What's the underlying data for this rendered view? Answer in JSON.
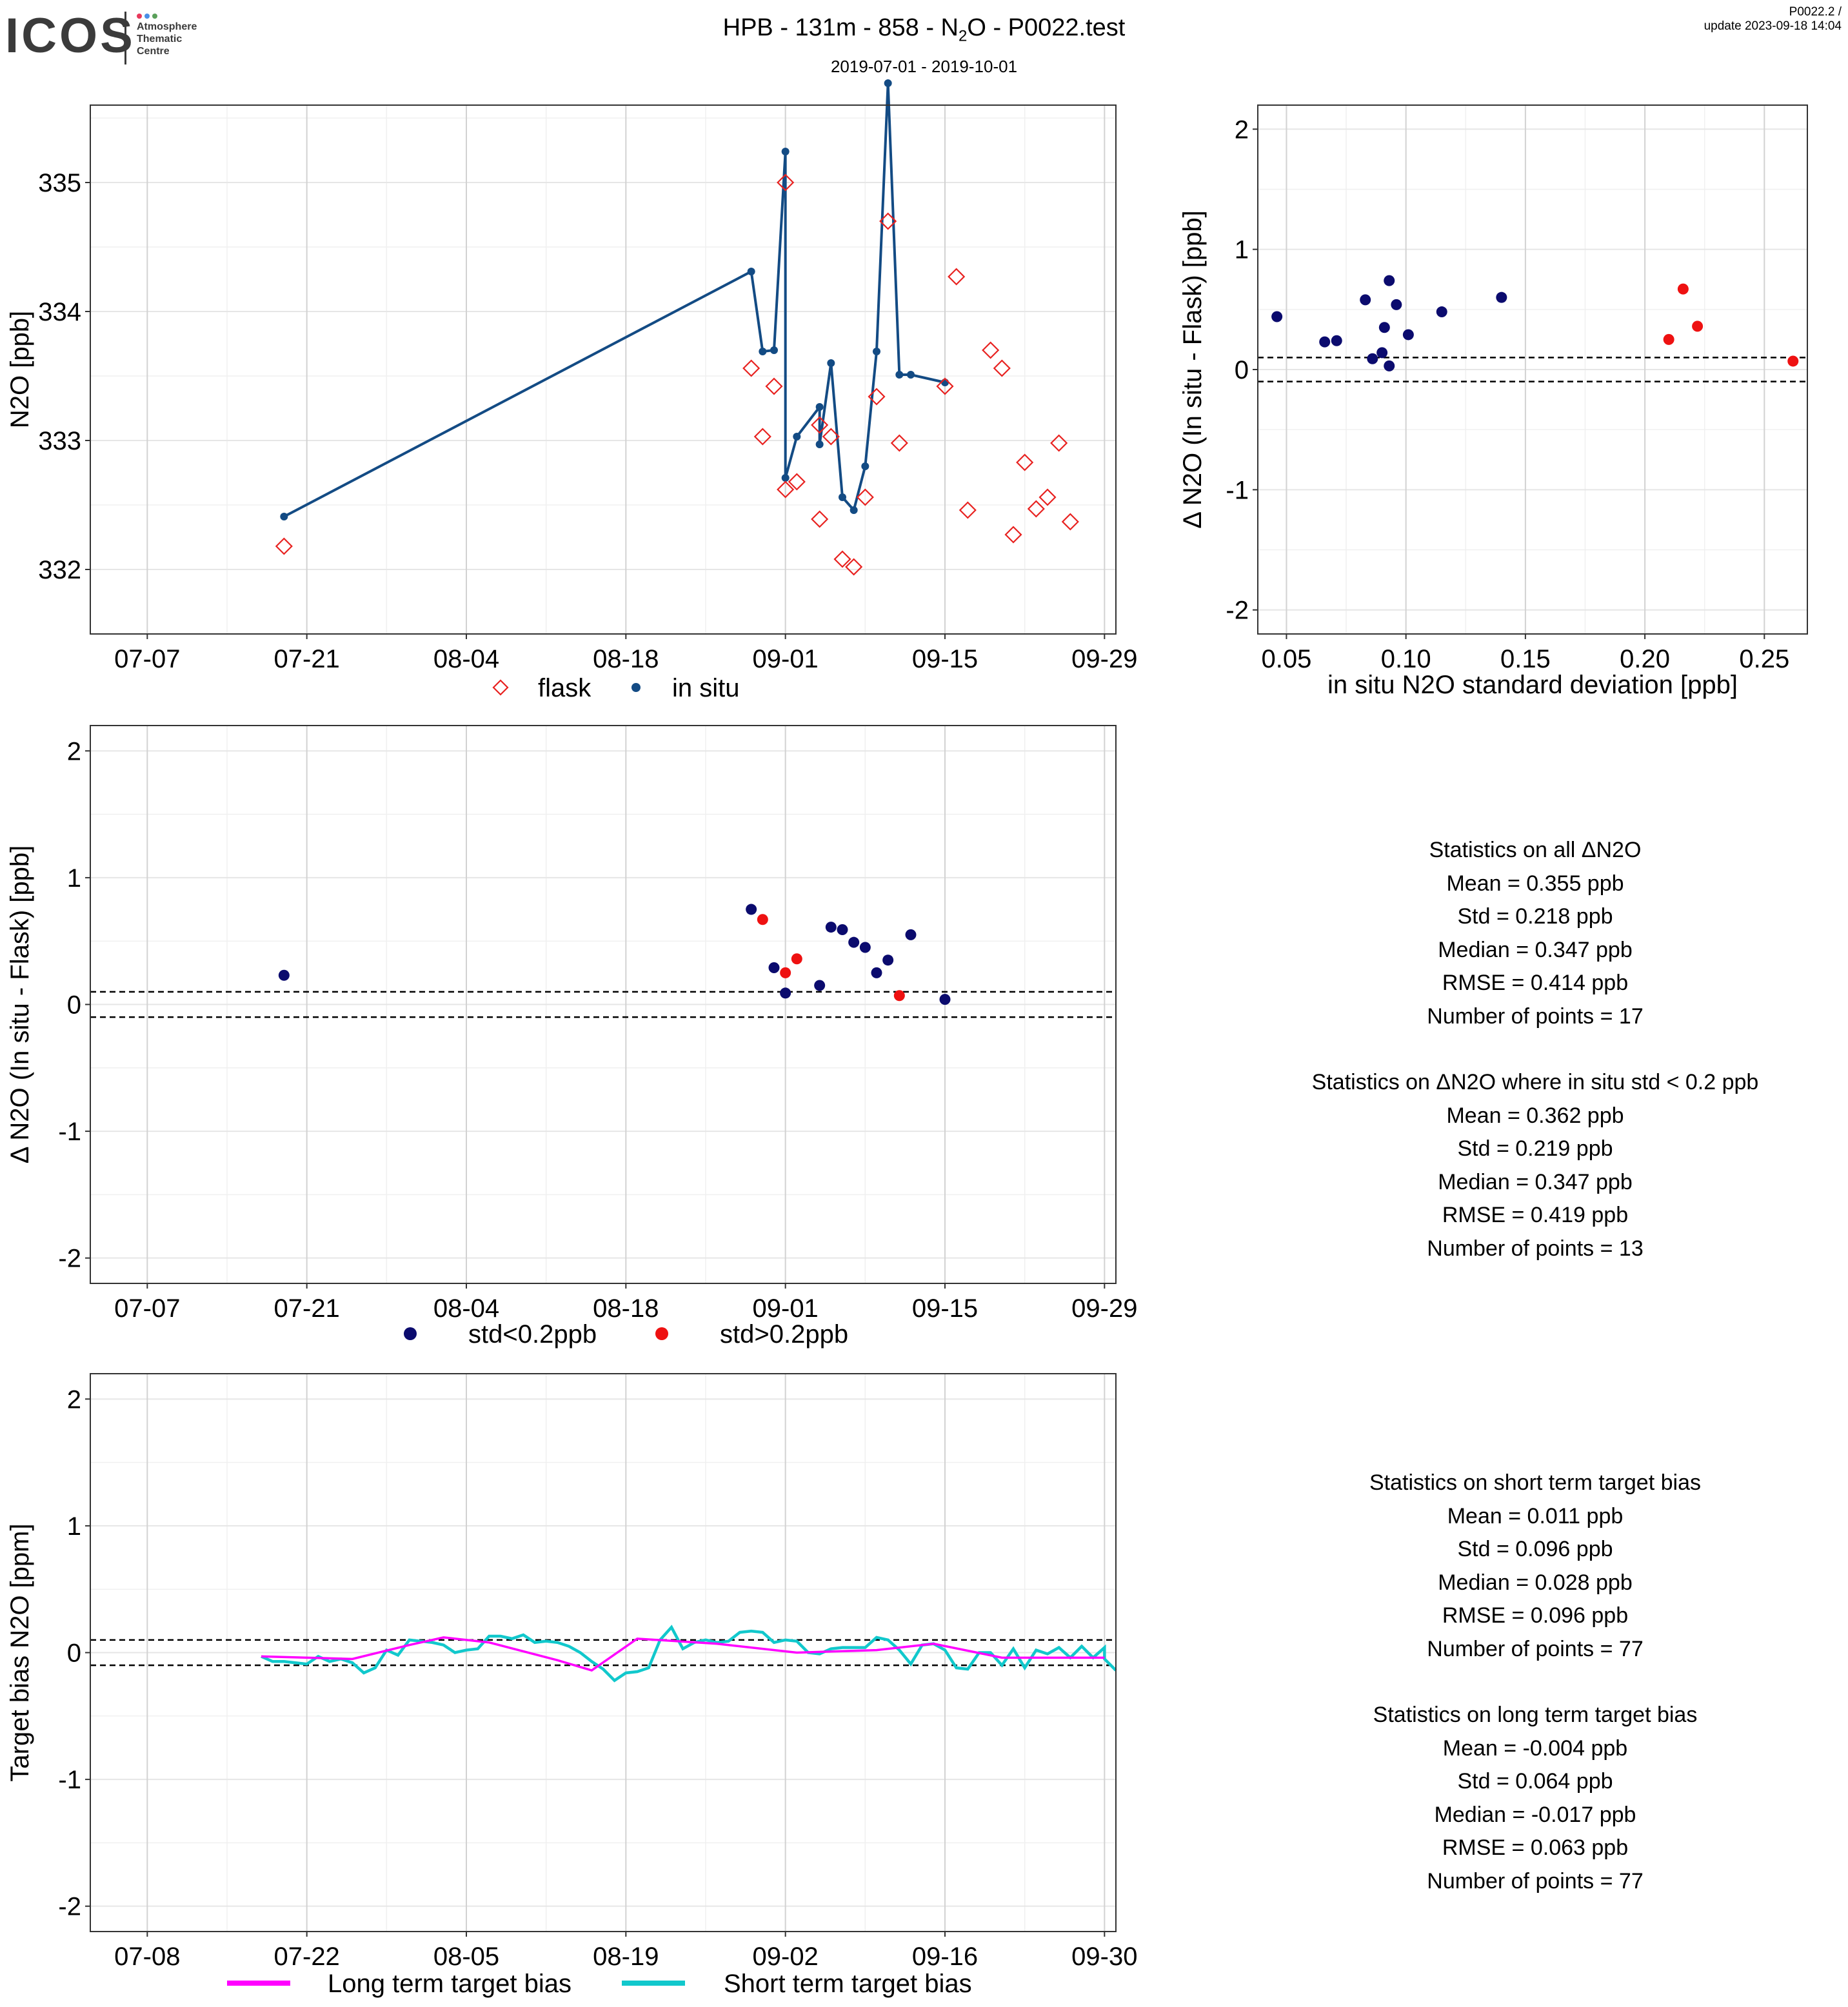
{
  "header": {
    "logo_text": "ICOS",
    "logo_subtitle": [
      "Atmosphere",
      "Thematic",
      "Centre"
    ],
    "title_prefix": "HPB - 131m - 858 - N",
    "title_sub": "2",
    "title_suffix": "O - P0022.test",
    "subtitle": "2019-07-01 - 2019-10-01",
    "version": "P0022.2 /",
    "update": "update  2023-09-18 14:04"
  },
  "colors": {
    "insitu": "#134B84",
    "flask": "#E8211F",
    "low_std": "#0B0B6E",
    "high_std": "#EE1111",
    "long_term": "#FF00FF",
    "short_term": "#11C8CC",
    "logo_dots": [
      "#E8385B",
      "#4A8FE7",
      "#5AA05A"
    ]
  },
  "chart_data": [
    {
      "id": "timeseries",
      "type": "line",
      "ylabel": "N2O [ppb]",
      "xlabel": "",
      "ylim": [
        331.5,
        335.6
      ],
      "xlim": [
        "2019-07-02",
        "2019-09-30"
      ],
      "yticks": [
        332,
        333,
        334,
        335
      ],
      "xticks": [
        "07-07",
        "07-21",
        "08-04",
        "08-18",
        "09-01",
        "09-15",
        "09-29"
      ],
      "grid": true,
      "legend_position": "bottom",
      "legend": [
        "flask",
        "in situ"
      ],
      "series": [
        {
          "name": "in situ",
          "style": "line+points",
          "x": [
            "2019-07-19",
            "2019-08-29",
            "2019-08-30",
            "2019-08-31",
            "2019-09-01",
            "2019-09-01",
            "2019-09-02",
            "2019-09-04",
            "2019-09-04",
            "2019-09-05",
            "2019-09-06",
            "2019-09-07",
            "2019-09-08",
            "2019-09-09",
            "2019-09-10",
            "2019-09-11",
            "2019-09-12",
            "2019-09-15"
          ],
          "y": [
            332.41,
            334.31,
            333.69,
            333.7,
            335.24,
            332.71,
            333.03,
            333.26,
            332.97,
            333.6,
            332.56,
            332.46,
            332.8,
            333.69,
            335.77,
            333.51,
            333.51,
            333.45
          ]
        },
        {
          "name": "flask",
          "style": "diamonds",
          "x": [
            "2019-07-19",
            "2019-08-29",
            "2019-08-30",
            "2019-08-31",
            "2019-09-01",
            "2019-09-01",
            "2019-09-02",
            "2019-09-04",
            "2019-09-04",
            "2019-09-05",
            "2019-09-06",
            "2019-09-07",
            "2019-09-08",
            "2019-09-09",
            "2019-09-10",
            "2019-09-11",
            "2019-09-15",
            "2019-09-16",
            "2019-09-17",
            "2019-09-19",
            "2019-09-20",
            "2019-09-21",
            "2019-09-22",
            "2019-09-23",
            "2019-09-24",
            "2019-09-25",
            "2019-09-26"
          ],
          "y": [
            332.18,
            333.56,
            333.03,
            333.42,
            335.0,
            332.62,
            332.68,
            333.12,
            332.39,
            333.03,
            332.08,
            332.02,
            332.56,
            333.34,
            334.7,
            332.98,
            333.42,
            334.27,
            332.46,
            333.7,
            333.56,
            332.27,
            332.83,
            332.47,
            332.56,
            332.98,
            332.37
          ]
        }
      ]
    },
    {
      "id": "delta_vs_std",
      "type": "scatter",
      "ylabel": "Δ N2O (In situ - Flask) [ppb]",
      "xlabel": "in situ N2O standard deviation [ppb]",
      "xlim": [
        0.038,
        0.268
      ],
      "ylim": [
        -2.2,
        2.2
      ],
      "xticks": [
        "0.05",
        "0.10",
        "0.15",
        "0.20",
        "0.25"
      ],
      "yticks": [
        "-2",
        "-1",
        "0",
        "1",
        "2"
      ],
      "grid": true,
      "hlines": [
        0.1,
        -0.1
      ],
      "series": [
        {
          "name": "",
          "color_key": "low_std",
          "x": [
            0.046,
            0.066,
            0.071,
            0.083,
            0.086,
            0.09,
            0.091,
            0.093,
            0.093,
            0.096,
            0.101,
            0.115,
            0.14
          ],
          "y": [
            0.44,
            0.23,
            0.24,
            0.58,
            0.09,
            0.14,
            0.35,
            0.74,
            0.03,
            0.54,
            0.29,
            0.48,
            0.6
          ]
        },
        {
          "name": "",
          "color_key": "high_std",
          "x": [
            0.21,
            0.216,
            0.222,
            0.262
          ],
          "y": [
            0.25,
            0.67,
            0.36,
            0.07
          ]
        }
      ]
    },
    {
      "id": "delta_time",
      "type": "scatter",
      "ylabel": "Δ N2O (In situ - Flask) [ppb]",
      "xlabel": "",
      "xlim": [
        "2019-07-02",
        "2019-09-30"
      ],
      "ylim": [
        -2.2,
        2.2
      ],
      "xticks": [
        "07-07",
        "07-21",
        "08-04",
        "08-18",
        "09-01",
        "09-15",
        "09-29"
      ],
      "yticks": [
        "-2",
        "-1",
        "0",
        "1",
        "2"
      ],
      "grid": true,
      "hlines": [
        0.1,
        -0.1
      ],
      "legend_position": "bottom",
      "legend": [
        "std<0.2ppb",
        "std>0.2ppb"
      ],
      "series": [
        {
          "name": "std<0.2ppb",
          "color_key": "low_std",
          "x": [
            "2019-07-19",
            "2019-08-29",
            "2019-08-31",
            "2019-09-01",
            "2019-09-04",
            "2019-09-05",
            "2019-09-06",
            "2019-09-07",
            "2019-09-08",
            "2019-09-09",
            "2019-09-10",
            "2019-09-12",
            "2019-09-15"
          ],
          "y": [
            0.23,
            0.75,
            0.29,
            0.09,
            0.15,
            0.61,
            0.59,
            0.49,
            0.45,
            0.25,
            0.35,
            0.55,
            0.04
          ]
        },
        {
          "name": "std>0.2ppb",
          "color_key": "high_std",
          "x": [
            "2019-08-30",
            "2019-09-01",
            "2019-09-02",
            "2019-09-11"
          ],
          "y": [
            0.67,
            0.25,
            0.36,
            0.07
          ]
        }
      ]
    },
    {
      "id": "target_bias",
      "type": "line",
      "ylabel": "Target bias N2O [ppm]",
      "xlabel": "",
      "xlim": [
        "2019-07-03",
        "2019-10-01"
      ],
      "ylim": [
        -2.2,
        2.2
      ],
      "xticks": [
        "07-08",
        "07-22",
        "08-05",
        "08-19",
        "09-02",
        "09-16",
        "09-30"
      ],
      "yticks": [
        "-2",
        "-1",
        "0",
        "1",
        "2"
      ],
      "grid": true,
      "hlines": [
        0.1,
        -0.1
      ],
      "legend_position": "bottom",
      "legend": [
        "Long term target bias",
        "Short term target bias"
      ],
      "series": [
        {
          "name": "Long term target bias",
          "color_key": "long_term",
          "x": [
            "2019-07-18",
            "2019-07-26",
            "2019-07-31",
            "2019-08-03",
            "2019-08-07",
            "2019-08-13",
            "2019-08-16",
            "2019-08-20",
            "2019-08-27",
            "2019-09-03",
            "2019-09-10",
            "2019-09-15",
            "2019-09-21",
            "2019-09-30"
          ],
          "y": [
            -0.03,
            -0.05,
            0.06,
            0.12,
            0.08,
            -0.06,
            -0.14,
            0.11,
            0.07,
            0.0,
            0.02,
            0.07,
            -0.04,
            -0.04
          ]
        },
        {
          "name": "Short term target bias",
          "color_key": "short_term",
          "x": [
            "2019-07-18",
            "2019-07-19",
            "2019-07-20",
            "2019-07-21",
            "2019-07-22",
            "2019-07-23",
            "2019-07-24",
            "2019-07-25",
            "2019-07-26",
            "2019-07-27",
            "2019-07-28",
            "2019-07-29",
            "2019-07-30",
            "2019-07-31",
            "2019-08-01",
            "2019-08-02",
            "2019-08-03",
            "2019-08-04",
            "2019-08-05",
            "2019-08-06",
            "2019-08-07",
            "2019-08-08",
            "2019-08-09",
            "2019-08-10",
            "2019-08-11",
            "2019-08-12",
            "2019-08-13",
            "2019-08-14",
            "2019-08-15",
            "2019-08-16",
            "2019-08-17",
            "2019-08-18",
            "2019-08-19",
            "2019-08-20",
            "2019-08-21",
            "2019-08-22",
            "2019-08-23",
            "2019-08-24",
            "2019-08-25",
            "2019-08-26",
            "2019-08-27",
            "2019-08-28",
            "2019-08-29",
            "2019-08-30",
            "2019-08-31",
            "2019-09-01",
            "2019-09-02",
            "2019-09-03",
            "2019-09-04",
            "2019-09-05",
            "2019-09-06",
            "2019-09-07",
            "2019-09-08",
            "2019-09-09",
            "2019-09-10",
            "2019-09-11",
            "2019-09-12",
            "2019-09-13",
            "2019-09-14",
            "2019-09-15",
            "2019-09-16",
            "2019-09-17",
            "2019-09-18",
            "2019-09-19",
            "2019-09-20",
            "2019-09-21",
            "2019-09-22",
            "2019-09-23",
            "2019-09-24",
            "2019-09-25",
            "2019-09-26",
            "2019-09-27",
            "2019-09-28",
            "2019-09-29",
            "2019-09-30",
            "2019-09-30",
            "2019-10-01"
          ],
          "y": [
            -0.03,
            -0.07,
            -0.07,
            -0.08,
            -0.09,
            -0.03,
            -0.07,
            -0.05,
            -0.08,
            -0.16,
            -0.12,
            0.02,
            -0.02,
            0.1,
            0.09,
            0.08,
            0.06,
            0.0,
            0.02,
            0.03,
            0.13,
            0.13,
            0.11,
            0.14,
            0.08,
            0.09,
            0.08,
            0.05,
            0.0,
            -0.07,
            -0.13,
            -0.22,
            -0.16,
            -0.15,
            -0.12,
            0.1,
            0.2,
            0.03,
            0.08,
            0.1,
            0.08,
            0.09,
            0.16,
            0.17,
            0.16,
            0.08,
            0.1,
            0.09,
            0.0,
            -0.01,
            0.03,
            0.04,
            0.04,
            0.04,
            0.12,
            0.1,
            0.02,
            -0.09,
            0.06,
            0.07,
            0.02,
            -0.12,
            -0.13,
            0.0,
            0.0,
            -0.1,
            0.03,
            -0.12,
            0.02,
            -0.01,
            0.04,
            -0.04,
            0.05,
            -0.04,
            0.04,
            -0.05,
            -0.14
          ]
        }
      ]
    }
  ],
  "stats_delta": {
    "all": {
      "title": "Statistics on all ΔN2O",
      "lines": [
        "Mean =  0.355 ppb",
        "Std =  0.218 ppb",
        "Median =  0.347 ppb",
        "RMSE =  0.414 ppb",
        "Number of points =  17"
      ]
    },
    "filtered": {
      "title": "Statistics on ΔN2O where in situ std < 0.2 ppb",
      "lines": [
        "Mean =  0.362 ppb",
        "Std =  0.219 ppb",
        "Median =  0.347 ppb",
        "RMSE =  0.419 ppb",
        "Number of points =  13"
      ]
    }
  },
  "stats_bias": {
    "short": {
      "title": "Statistics on short term target bias",
      "lines": [
        "Mean =  0.011 ppb",
        "Std =  0.096 ppb",
        "Median =  0.028 ppb",
        "RMSE =  0.096 ppb",
        "Number of points =  77"
      ]
    },
    "long": {
      "title": "Statistics on long term target bias",
      "lines": [
        "Mean =  -0.004 ppb",
        "Std =  0.064 ppb",
        "Median =  -0.017 ppb",
        "RMSE =  0.063 ppb",
        "Number of points =  77"
      ]
    }
  }
}
